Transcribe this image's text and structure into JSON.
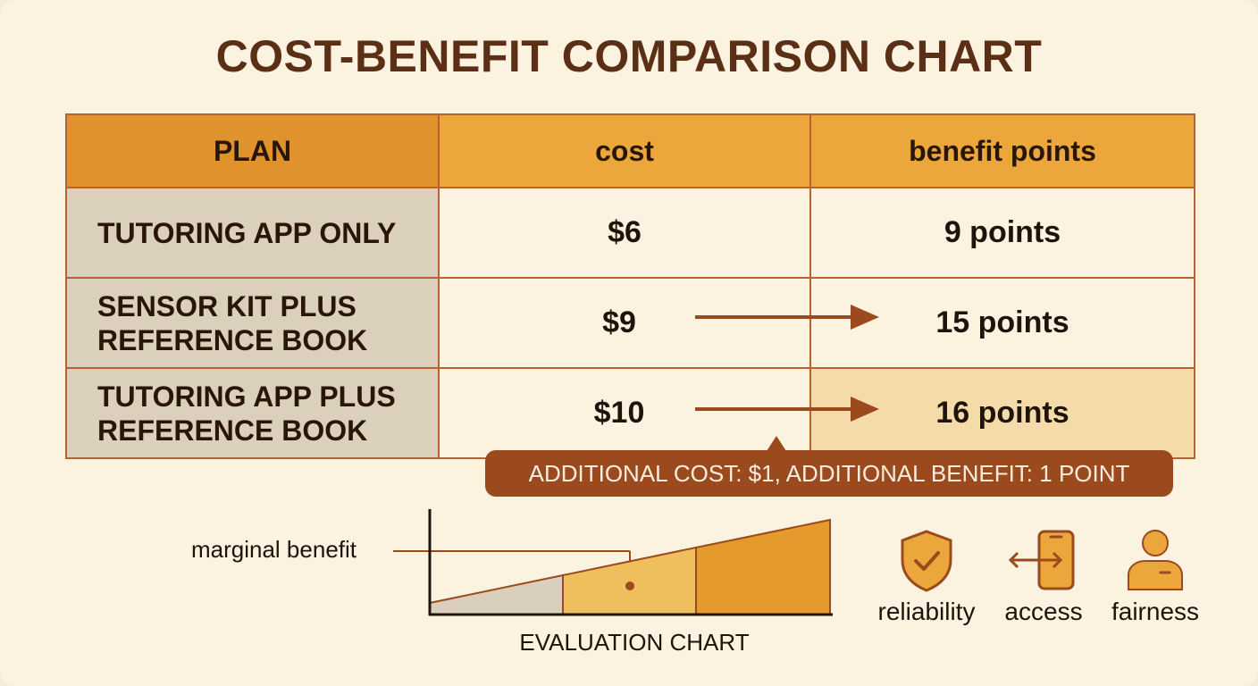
{
  "title": "COST-BENEFIT COMPARISON CHART",
  "colors": {
    "accent_dark": "#9a4a1c",
    "header_orange": "#eca73c",
    "plan_header": "#e0932c",
    "plan_cell": "#dbd0bc",
    "highlight": "#f5dba9",
    "border": "#b9622f",
    "title": "#5a2f16"
  },
  "table": {
    "headers": {
      "plan": "PLAN",
      "cost": "cost",
      "benefit": "benefit points"
    },
    "rows": [
      {
        "plan_line1": "TUTORING APP ONLY",
        "plan_line2": "",
        "cost": "$6",
        "benefit": "9 points"
      },
      {
        "plan_line1": "SENSOR KIT PLUS",
        "plan_line2": "REFERENCE BOOK",
        "cost": "$9",
        "benefit": "15 points"
      },
      {
        "plan_line1": "TUTORING APP PLUS",
        "plan_line2": "REFERENCE BOOK",
        "cost": "$10",
        "benefit": "16 points"
      }
    ]
  },
  "callout": "ADDITIONAL COST: $1, ADDITIONAL BENEFIT: 1 POINT",
  "evaluation_chart": {
    "title": "EVALUATION CHART",
    "annotation": "marginal benefit"
  },
  "icons": [
    {
      "name": "shield-check-icon",
      "label": "reliability"
    },
    {
      "name": "phone-arrows-icon",
      "label": "access"
    },
    {
      "name": "person-icon",
      "label": "fairness"
    }
  ],
  "chart_data": {
    "type": "table",
    "title": "COST-BENEFIT COMPARISON CHART",
    "columns": [
      "PLAN",
      "cost",
      "benefit points"
    ],
    "rows": [
      [
        "TUTORING APP ONLY",
        "$6",
        "9 points"
      ],
      [
        "SENSOR KIT PLUS REFERENCE BOOK",
        "$9",
        "15 points"
      ],
      [
        "TUTORING APP PLUS REFERENCE BOOK",
        "$10",
        "16 points"
      ]
    ],
    "series": [
      {
        "name": "cost",
        "values": [
          6,
          9,
          10
        ]
      },
      {
        "name": "benefit points",
        "values": [
          9,
          15,
          16
        ]
      }
    ]
  }
}
